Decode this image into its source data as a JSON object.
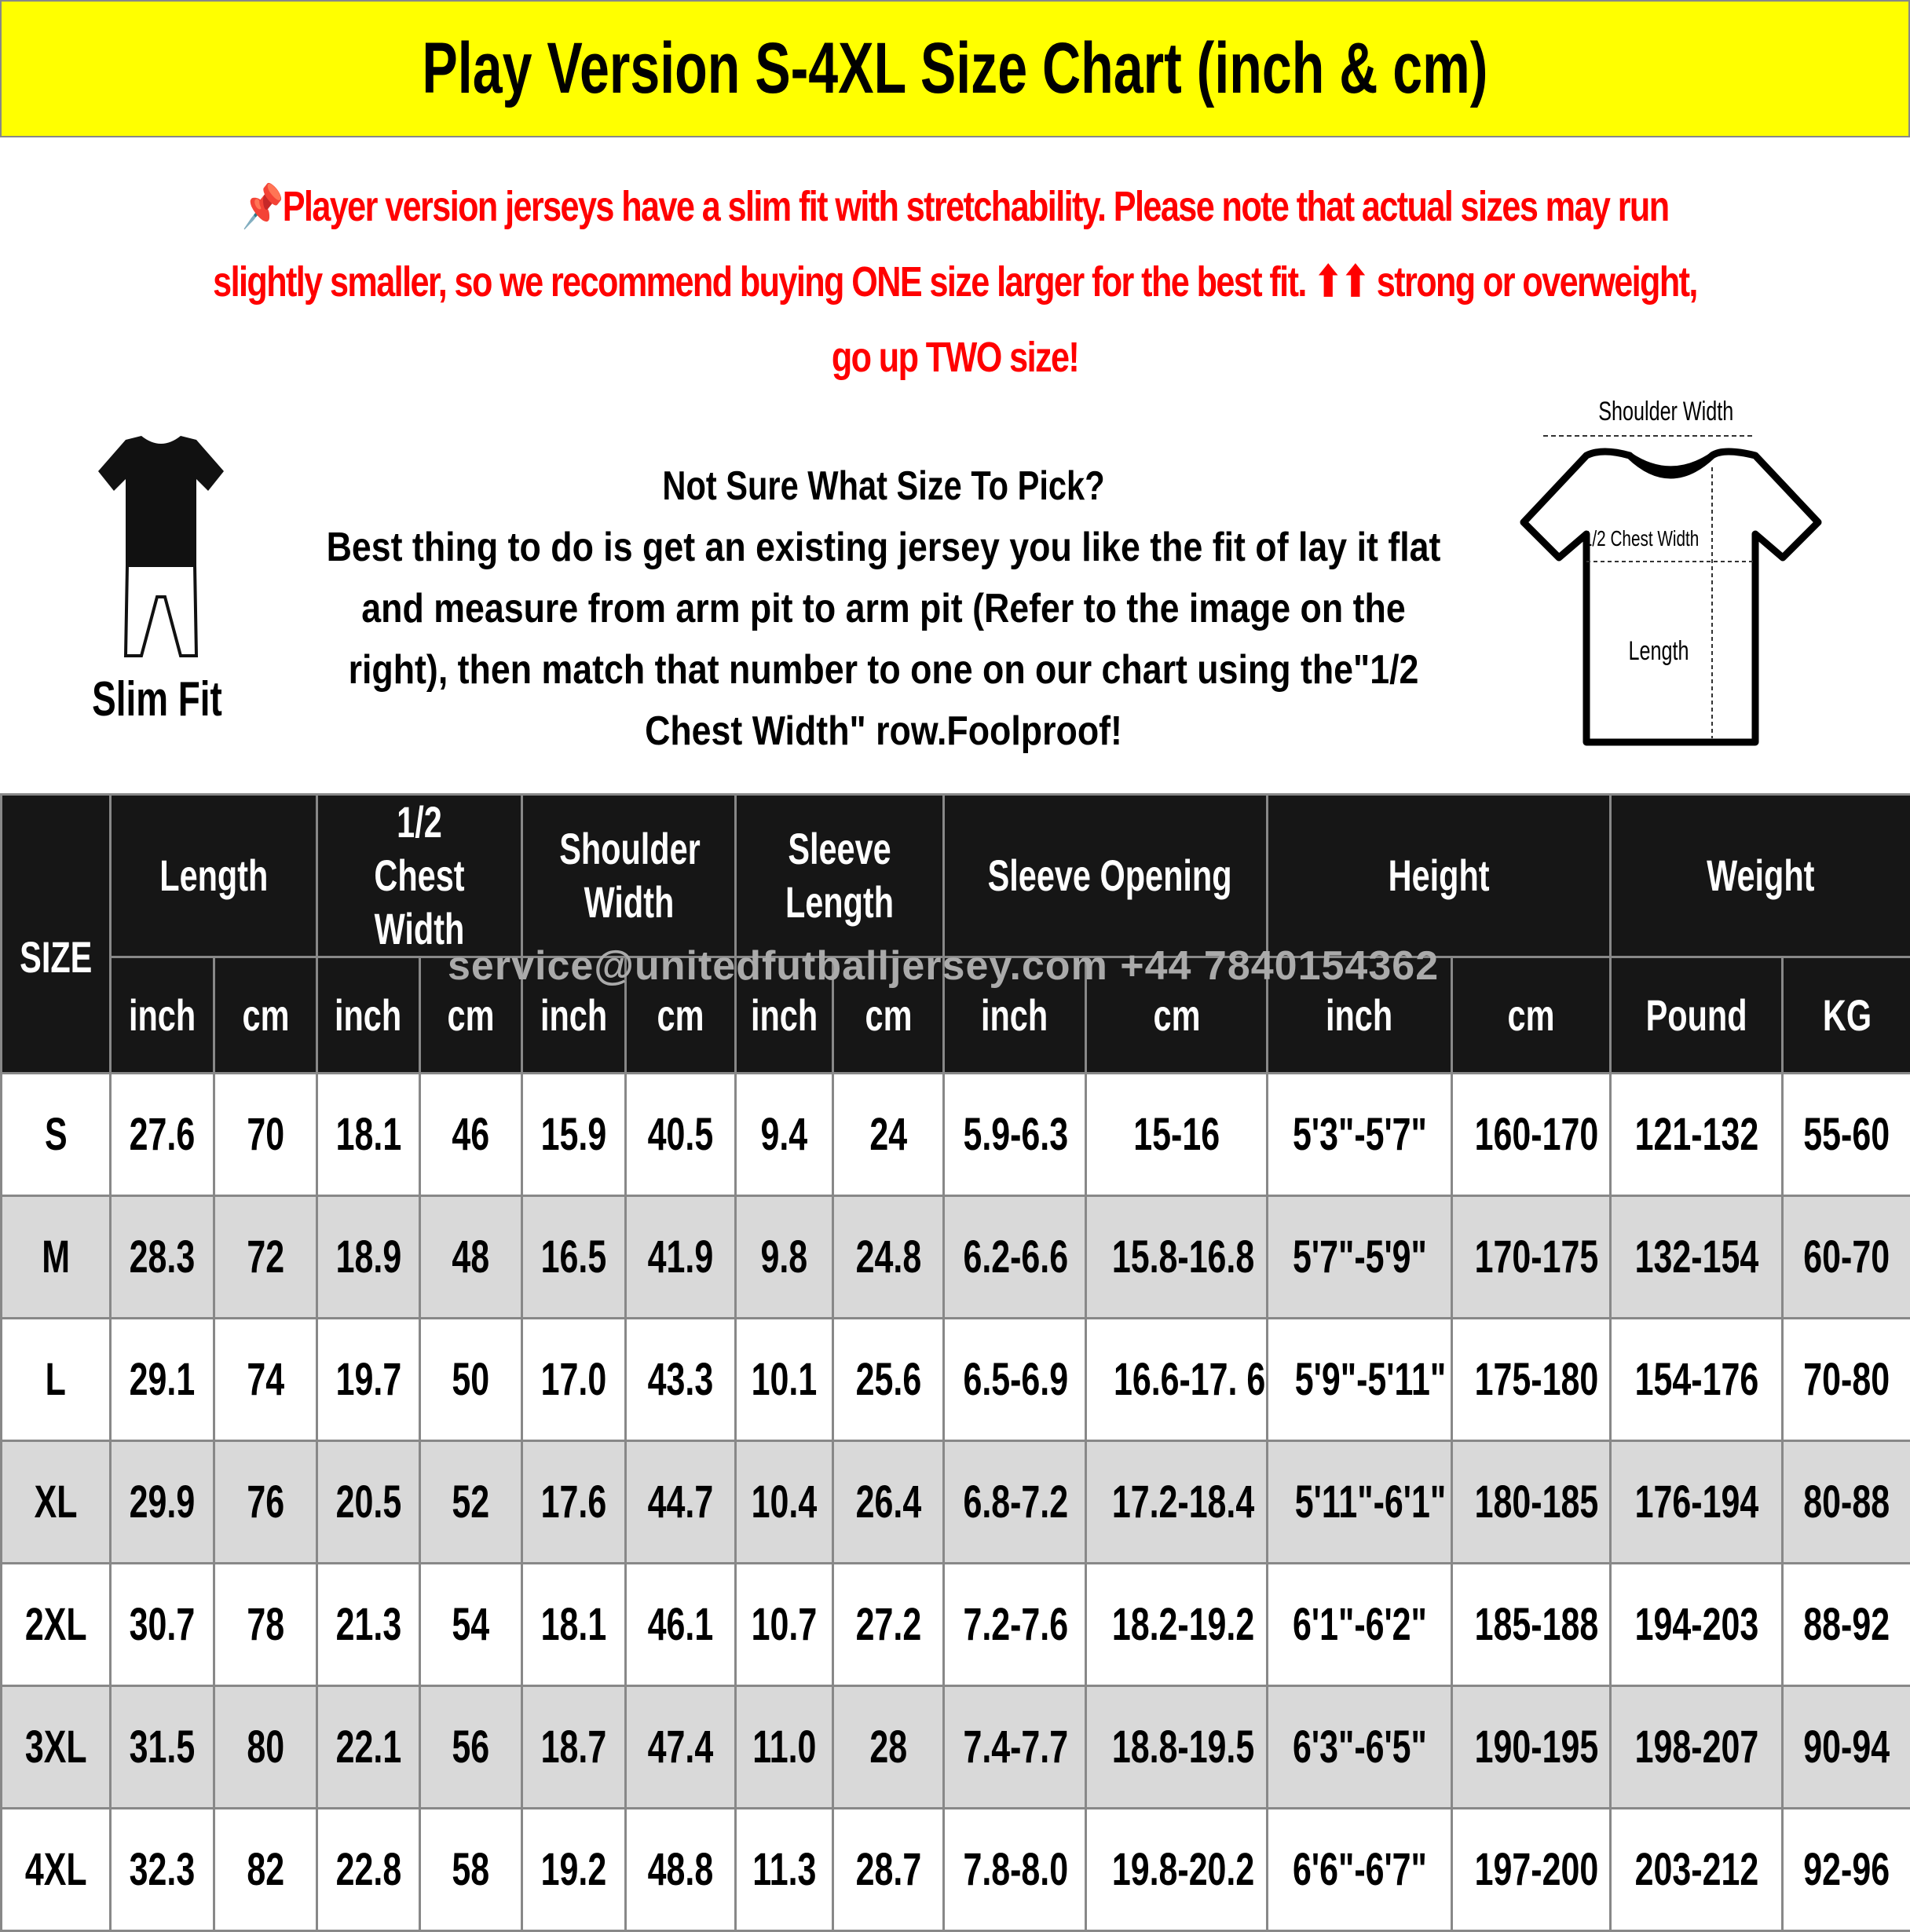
{
  "title": "Play Version S-4XL Size Chart (inch & cm)",
  "notice": {
    "icon": "pushpin-icon",
    "text": "Player version jerseys have a slim fit with stretchability. Please note that actual sizes may run slightly smaller, so we recommend buying ONE size larger for the best fit. ⬆⬆ strong or overweight, go up TWO size!",
    "color": "#ff0000"
  },
  "slim_fit": {
    "label": "Slim Fit",
    "icon": "slim-fit-figure-icon"
  },
  "help": {
    "heading": "Not Sure What Size To Pick?",
    "body": "Best thing to do is get an existing jersey you like the fit of lay it flat and measure from arm pit to arm pit (Refer to the image on the right), then match that number to one on our chart using the\"1/2 Chest Width\" row.Foolproof!"
  },
  "diagram": {
    "shoulder": "Shoulder Width",
    "chest": "1/2 Chest Width",
    "length": "Length",
    "icon": "tshirt-measurement-icon"
  },
  "watermark": "service@unitedfutballjersey.com   +44 7840154362",
  "table": {
    "size_header": "SIZE",
    "groups": [
      "Length",
      "1/2 Chest Width",
      "Shoulder Width",
      "Sleeve Length",
      "Sleeve Opening",
      "Height",
      "Weight"
    ],
    "units": [
      "inch",
      "cm",
      "inch",
      "cm",
      "inch",
      "cm",
      "inch",
      "cm",
      "inch",
      "cm",
      "inch",
      "cm",
      "Pound",
      "KG"
    ],
    "rows": [
      [
        "S",
        "27.6",
        "70",
        "18.1",
        "46",
        "15.9",
        "40.5",
        "9.4",
        "24",
        "5.9-6.3",
        "15-16",
        "5'3\"-5'7\"",
        "160-170",
        "121-132",
        "55-60"
      ],
      [
        "M",
        "28.3",
        "72",
        "18.9",
        "48",
        "16.5",
        "41.9",
        "9.8",
        "24.8",
        "6.2-6.6",
        "15.8-16.8",
        "5'7\"-5'9\"",
        "170-175",
        "132-154",
        "60-70"
      ],
      [
        "L",
        "29.1",
        "74",
        "19.7",
        "50",
        "17.0",
        "43.3",
        "10.1",
        "25.6",
        "6.5-6.9",
        "16.6-17. 6",
        "5'9\"-5'11\"",
        "175-180",
        "154-176",
        "70-80"
      ],
      [
        "XL",
        "29.9",
        "76",
        "20.5",
        "52",
        "17.6",
        "44.7",
        "10.4",
        "26.4",
        "6.8-7.2",
        "17.2-18.4",
        "5'11\"-6'1\"",
        "180-185",
        "176-194",
        "80-88"
      ],
      [
        "2XL",
        "30.7",
        "78",
        "21.3",
        "54",
        "18.1",
        "46.1",
        "10.7",
        "27.2",
        "7.2-7.6",
        "18.2-19.2",
        "6'1\"-6'2\"",
        "185-188",
        "194-203",
        "88-92"
      ],
      [
        "3XL",
        "31.5",
        "80",
        "22.1",
        "56",
        "18.7",
        "47.4",
        "11.0",
        "28",
        "7.4-7.7",
        "18.8-19.5",
        "6'3\"-6'5\"",
        "190-195",
        "198-207",
        "90-94"
      ],
      [
        "4XL",
        "32.3",
        "82",
        "22.8",
        "58",
        "19.2",
        "48.8",
        "11.3",
        "28.7",
        "7.8-8.0",
        "19.8-20.2",
        "6'6\"-6'7\"",
        "197-200",
        "203-212",
        "92-96"
      ]
    ]
  }
}
